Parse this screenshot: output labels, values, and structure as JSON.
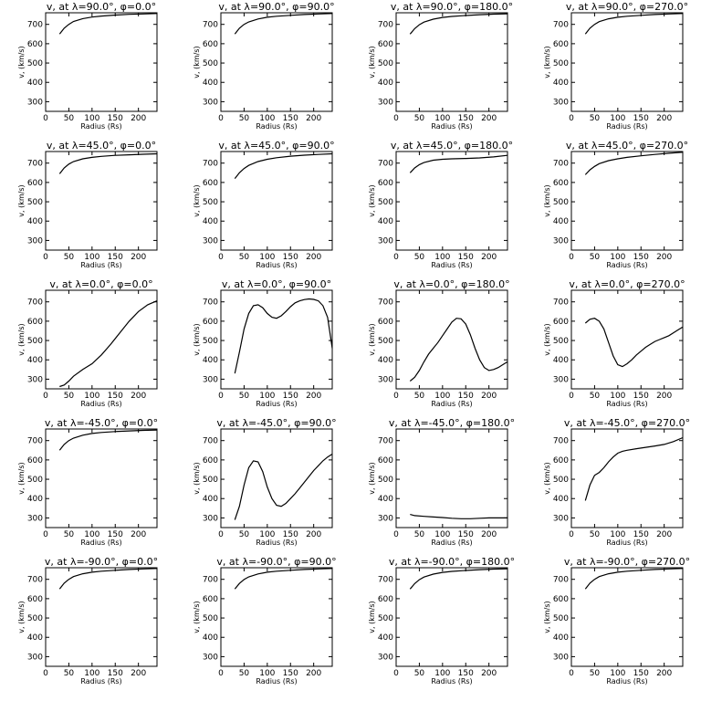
{
  "chart_data": [
    {
      "type": "line",
      "title": "v, at λ=90.0°, φ=0.0°",
      "xlabel": "Radius (Rs)",
      "ylabel": "v, (km/s)",
      "xlim": [
        0,
        240
      ],
      "ylim": [
        250,
        760
      ],
      "x": [
        30,
        40,
        50,
        60,
        80,
        100,
        120,
        150,
        180,
        210,
        240
      ],
      "y": [
        650,
        680,
        700,
        715,
        730,
        738,
        743,
        748,
        752,
        754,
        756
      ]
    },
    {
      "type": "line",
      "title": "v, at λ=90.0°, φ=90.0°",
      "xlabel": "Radius (Rs)",
      "ylabel": "v, (km/s)",
      "xlim": [
        0,
        240
      ],
      "ylim": [
        250,
        760
      ],
      "x": [
        30,
        40,
        50,
        60,
        80,
        100,
        120,
        150,
        180,
        210,
        240
      ],
      "y": [
        650,
        680,
        700,
        713,
        728,
        737,
        742,
        747,
        751,
        754,
        756
      ]
    },
    {
      "type": "line",
      "title": "v, at λ=90.0°, φ=180.0°",
      "xlabel": "Radius (Rs)",
      "ylabel": "v, (km/s)",
      "xlim": [
        0,
        240
      ],
      "ylim": [
        250,
        760
      ],
      "x": [
        30,
        40,
        50,
        60,
        80,
        100,
        120,
        150,
        180,
        210,
        240
      ],
      "y": [
        650,
        678,
        698,
        712,
        727,
        736,
        741,
        746,
        750,
        753,
        755
      ]
    },
    {
      "type": "line",
      "title": "v, at λ=90.0°, φ=270.0°",
      "xlabel": "Radius (Rs)",
      "ylabel": "v, (km/s)",
      "xlim": [
        0,
        240
      ],
      "ylim": [
        250,
        760
      ],
      "x": [
        30,
        40,
        50,
        60,
        80,
        100,
        120,
        150,
        180,
        210,
        240
      ],
      "y": [
        650,
        680,
        700,
        714,
        729,
        737,
        742,
        747,
        751,
        754,
        756
      ]
    },
    {
      "type": "line",
      "title": "v, at λ=45.0°, φ=0.0°",
      "xlabel": "Radius (Rs)",
      "ylabel": "v, (km/s)",
      "xlim": [
        0,
        240
      ],
      "ylim": [
        250,
        760
      ],
      "x": [
        30,
        40,
        50,
        60,
        80,
        100,
        120,
        150,
        180,
        210,
        240
      ],
      "y": [
        645,
        675,
        695,
        708,
        722,
        730,
        735,
        740,
        743,
        746,
        748
      ]
    },
    {
      "type": "line",
      "title": "v, at λ=45.0°, φ=90.0°",
      "xlabel": "Radius (Rs)",
      "ylabel": "v, (km/s)",
      "xlim": [
        0,
        240
      ],
      "ylim": [
        250,
        760
      ],
      "x": [
        30,
        40,
        50,
        60,
        80,
        100,
        120,
        150,
        180,
        210,
        240
      ],
      "y": [
        620,
        650,
        672,
        688,
        708,
        720,
        728,
        736,
        741,
        745,
        748
      ]
    },
    {
      "type": "line",
      "title": "v, at λ=45.0°, φ=180.0°",
      "xlabel": "Radius (Rs)",
      "ylabel": "v, (km/s)",
      "xlim": [
        0,
        240
      ],
      "ylim": [
        250,
        760
      ],
      "x": [
        30,
        40,
        50,
        60,
        80,
        100,
        120,
        150,
        180,
        210,
        240
      ],
      "y": [
        650,
        675,
        692,
        703,
        715,
        720,
        722,
        724,
        727,
        732,
        740
      ]
    },
    {
      "type": "line",
      "title": "v, at λ=45.0°, φ=270.0°",
      "xlabel": "Radius (Rs)",
      "ylabel": "v, (km/s)",
      "xlim": [
        0,
        240
      ],
      "ylim": [
        250,
        760
      ],
      "x": [
        30,
        40,
        50,
        60,
        80,
        100,
        120,
        150,
        180,
        210,
        240
      ],
      "y": [
        640,
        665,
        683,
        697,
        713,
        722,
        730,
        738,
        745,
        751,
        756
      ]
    },
    {
      "type": "line",
      "title": "v, at λ=0.0°, φ=0.0°",
      "xlabel": "Radius (Rs)",
      "ylabel": "v, (km/s)",
      "xlim": [
        0,
        240
      ],
      "ylim": [
        250,
        760
      ],
      "x": [
        30,
        40,
        50,
        60,
        80,
        100,
        120,
        140,
        160,
        180,
        200,
        220,
        240
      ],
      "y": [
        262,
        270,
        290,
        315,
        350,
        380,
        425,
        480,
        540,
        600,
        650,
        685,
        705
      ]
    },
    {
      "type": "line",
      "title": "v, at λ=0.0°, φ=90.0°",
      "xlabel": "Radius (Rs)",
      "ylabel": "v, (km/s)",
      "xlim": [
        0,
        240
      ],
      "ylim": [
        250,
        760
      ],
      "x": [
        30,
        40,
        50,
        60,
        70,
        80,
        90,
        100,
        110,
        120,
        130,
        140,
        150,
        160,
        170,
        180,
        190,
        200,
        210,
        220,
        230,
        240
      ],
      "y": [
        330,
        440,
        560,
        640,
        680,
        685,
        670,
        640,
        620,
        615,
        628,
        650,
        675,
        695,
        705,
        712,
        715,
        713,
        705,
        680,
        620,
        460
      ]
    },
    {
      "type": "line",
      "title": "v, at λ=0.0°, φ=180.0°",
      "xlabel": "Radius (Rs)",
      "ylabel": "v, (km/s)",
      "xlim": [
        0,
        240
      ],
      "ylim": [
        250,
        760
      ],
      "x": [
        30,
        40,
        50,
        60,
        70,
        80,
        90,
        100,
        110,
        120,
        130,
        140,
        150,
        160,
        170,
        180,
        190,
        200,
        210,
        220,
        230,
        240
      ],
      "y": [
        290,
        310,
        345,
        390,
        430,
        460,
        490,
        525,
        560,
        595,
        615,
        612,
        585,
        530,
        460,
        400,
        360,
        345,
        350,
        360,
        375,
        390
      ]
    },
    {
      "type": "line",
      "title": "v, at λ=0.0°, φ=270.0°",
      "xlabel": "Radius (Rs)",
      "ylabel": "v, (km/s)",
      "xlim": [
        0,
        240
      ],
      "ylim": [
        250,
        760
      ],
      "x": [
        30,
        40,
        50,
        60,
        70,
        80,
        90,
        100,
        110,
        120,
        130,
        140,
        150,
        160,
        170,
        180,
        190,
        200,
        210,
        220,
        230,
        240
      ],
      "y": [
        590,
        610,
        615,
        600,
        560,
        490,
        420,
        375,
        365,
        380,
        400,
        425,
        445,
        465,
        480,
        495,
        505,
        515,
        525,
        540,
        555,
        570
      ]
    },
    {
      "type": "line",
      "title": "v, at λ=-45.0°, φ=0.0°",
      "xlabel": "Radius (Rs)",
      "ylabel": "v, (km/s)",
      "xlim": [
        0,
        240
      ],
      "ylim": [
        250,
        760
      ],
      "x": [
        30,
        40,
        50,
        60,
        80,
        100,
        120,
        150,
        180,
        210,
        240
      ],
      "y": [
        650,
        680,
        700,
        713,
        728,
        737,
        742,
        747,
        750,
        753,
        755
      ]
    },
    {
      "type": "line",
      "title": "v, at λ=-45.0°, φ=90.0°",
      "xlabel": "Radius (Rs)",
      "ylabel": "v, (km/s)",
      "xlim": [
        0,
        240
      ],
      "ylim": [
        250,
        760
      ],
      "x": [
        30,
        40,
        50,
        60,
        70,
        80,
        90,
        100,
        110,
        120,
        130,
        140,
        150,
        160,
        170,
        180,
        190,
        200,
        210,
        220,
        230,
        240
      ],
      "y": [
        290,
        360,
        470,
        560,
        595,
        590,
        540,
        460,
        400,
        365,
        360,
        375,
        400,
        425,
        455,
        485,
        515,
        545,
        570,
        595,
        615,
        630
      ]
    },
    {
      "type": "line",
      "title": "v, at λ=-45.0°, φ=180.0°",
      "xlabel": "Radius (Rs)",
      "ylabel": "v, (km/s)",
      "xlim": [
        0,
        240
      ],
      "ylim": [
        250,
        760
      ],
      "x": [
        30,
        40,
        60,
        80,
        100,
        120,
        140,
        160,
        180,
        200,
        220,
        240
      ],
      "y": [
        318,
        312,
        308,
        305,
        302,
        298,
        296,
        296,
        298,
        300,
        300,
        300
      ]
    },
    {
      "type": "line",
      "title": "v, at λ=-45.0°, φ=270.0°",
      "xlabel": "Radius (Rs)",
      "ylabel": "v, (km/s)",
      "xlim": [
        0,
        240
      ],
      "ylim": [
        250,
        760
      ],
      "x": [
        30,
        40,
        50,
        60,
        70,
        80,
        90,
        100,
        110,
        120,
        140,
        160,
        180,
        200,
        220,
        240
      ],
      "y": [
        390,
        470,
        520,
        535,
        560,
        590,
        615,
        635,
        645,
        650,
        658,
        665,
        672,
        680,
        695,
        715
      ]
    },
    {
      "type": "line",
      "title": "v, at λ=-90.0°, φ=0.0°",
      "xlabel": "Radius (Rs)",
      "ylabel": "v, (km/s)",
      "xlim": [
        0,
        240
      ],
      "ylim": [
        250,
        760
      ],
      "x": [
        30,
        40,
        50,
        60,
        80,
        100,
        120,
        150,
        180,
        210,
        240
      ],
      "y": [
        650,
        680,
        700,
        714,
        729,
        737,
        742,
        747,
        751,
        754,
        756
      ]
    },
    {
      "type": "line",
      "title": "v, at λ=-90.0°, φ=90.0°",
      "xlabel": "Radius (Rs)",
      "ylabel": "v, (km/s)",
      "xlim": [
        0,
        240
      ],
      "ylim": [
        250,
        760
      ],
      "x": [
        30,
        40,
        50,
        60,
        80,
        100,
        120,
        150,
        180,
        210,
        240
      ],
      "y": [
        650,
        679,
        699,
        713,
        728,
        737,
        742,
        747,
        751,
        754,
        756
      ]
    },
    {
      "type": "line",
      "title": "v, at λ=-90.0°, φ=180.0°",
      "xlabel": "Radius (Rs)",
      "ylabel": "v, (km/s)",
      "xlim": [
        0,
        240
      ],
      "ylim": [
        250,
        760
      ],
      "x": [
        30,
        40,
        50,
        60,
        80,
        100,
        120,
        150,
        180,
        210,
        240
      ],
      "y": [
        650,
        678,
        698,
        712,
        727,
        736,
        741,
        746,
        750,
        753,
        755
      ]
    },
    {
      "type": "line",
      "title": "v, at λ=-90.0°, φ=270.0°",
      "xlabel": "Radius (Rs)",
      "ylabel": "v, (km/s)",
      "xlim": [
        0,
        240
      ],
      "ylim": [
        250,
        760
      ],
      "x": [
        30,
        40,
        50,
        60,
        80,
        100,
        120,
        150,
        180,
        210,
        240
      ],
      "y": [
        650,
        680,
        700,
        714,
        729,
        737,
        742,
        747,
        751,
        754,
        756
      ]
    }
  ],
  "axes": {
    "xticks": [
      0,
      50,
      100,
      150,
      200
    ],
    "yticks": [
      300,
      400,
      500,
      600,
      700
    ]
  }
}
